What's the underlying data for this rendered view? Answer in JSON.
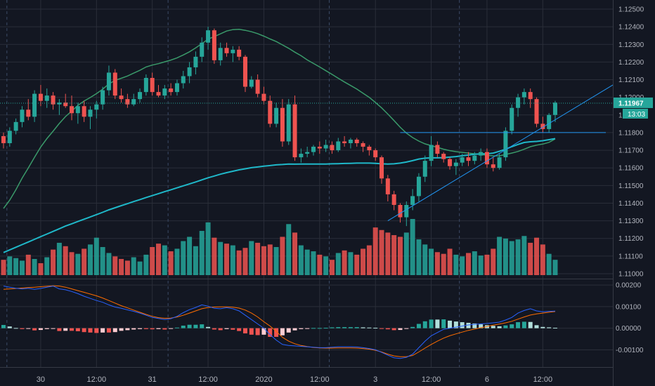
{
  "chart_data": [
    {
      "type": "candlestick",
      "pane": "price",
      "price_axis": {
        "ticks": [
          "1.12500",
          "1.12400",
          "1.12300",
          "1.12200",
          "1.12100",
          "1.12000",
          "1.11900",
          "1.11800",
          "1.11700",
          "1.11600",
          "1.11500",
          "1.11400",
          "1.11300",
          "1.11200",
          "1.11100",
          "1.11000"
        ],
        "range": [
          1.11,
          1.125
        ]
      },
      "time_axis": {
        "labels": [
          "30",
          "12:00",
          "31",
          "12:00",
          "2020",
          "12:00",
          "3",
          "12:00",
          "6",
          "12:00"
        ],
        "label_bar_index": [
          6,
          15,
          24,
          33,
          42,
          51,
          60,
          69,
          78,
          87
        ]
      },
      "current_price": "1.11967",
      "countdown": "13:03",
      "candles": [
        [
          1.1178,
          1.118,
          1.1171,
          1.1174
        ],
        [
          1.1174,
          1.1183,
          1.1172,
          1.1181
        ],
        [
          1.1181,
          1.1188,
          1.1179,
          1.1186
        ],
        [
          1.1186,
          1.1195,
          1.1183,
          1.1193
        ],
        [
          1.1193,
          1.1199,
          1.1187,
          1.1189
        ],
        [
          1.1189,
          1.1204,
          1.1186,
          1.1202
        ],
        [
          1.1202,
          1.1207,
          1.1195,
          1.1198
        ],
        [
          1.1198,
          1.1205,
          1.1194,
          1.1201
        ],
        [
          1.1201,
          1.1203,
          1.1193,
          1.1196
        ],
        [
          1.1196,
          1.1199,
          1.119,
          1.1197
        ],
        [
          1.1197,
          1.1202,
          1.1194,
          1.1195
        ],
        [
          1.1195,
          1.1201,
          1.1187,
          1.1191
        ],
        [
          1.1191,
          1.1197,
          1.1185,
          1.1195
        ],
        [
          1.1195,
          1.1198,
          1.1186,
          1.1189
        ],
        [
          1.1189,
          1.1195,
          1.1182,
          1.1193
        ],
        [
          1.1193,
          1.1198,
          1.1188,
          1.1196
        ],
        [
          1.1196,
          1.1206,
          1.1193,
          1.1204
        ],
        [
          1.1204,
          1.1218,
          1.1201,
          1.1214
        ],
        [
          1.1214,
          1.1216,
          1.1199,
          1.1201
        ],
        [
          1.1201,
          1.1205,
          1.1197,
          1.1199
        ],
        [
          1.1199,
          1.1202,
          1.1194,
          1.1196
        ],
        [
          1.1196,
          1.1202,
          1.1195,
          1.1199
        ],
        [
          1.1199,
          1.1205,
          1.1197,
          1.1203
        ],
        [
          1.1203,
          1.1213,
          1.1201,
          1.1211
        ],
        [
          1.1211,
          1.1214,
          1.1201,
          1.1203
        ],
        [
          1.1203,
          1.1207,
          1.12,
          1.1201
        ],
        [
          1.1201,
          1.1207,
          1.1199,
          1.1205
        ],
        [
          1.1205,
          1.1208,
          1.1201,
          1.1203
        ],
        [
          1.1203,
          1.121,
          1.1201,
          1.1208
        ],
        [
          1.1208,
          1.1215,
          1.1205,
          1.1212
        ],
        [
          1.1212,
          1.122,
          1.1208,
          1.1217
        ],
        [
          1.1217,
          1.1226,
          1.1213,
          1.1223
        ],
        [
          1.1223,
          1.1234,
          1.122,
          1.1231
        ],
        [
          1.1231,
          1.124,
          1.1227,
          1.1238
        ],
        [
          1.1238,
          1.1239,
          1.1219,
          1.1221
        ],
        [
          1.1221,
          1.1231,
          1.1218,
          1.1228
        ],
        [
          1.1228,
          1.1231,
          1.1223,
          1.1225
        ],
        [
          1.1225,
          1.1229,
          1.122,
          1.1227
        ],
        [
          1.1227,
          1.1229,
          1.1221,
          1.1223
        ],
        [
          1.1223,
          1.1224,
          1.1203,
          1.1206
        ],
        [
          1.1206,
          1.1212,
          1.1205,
          1.121
        ],
        [
          1.121,
          1.1213,
          1.12,
          1.1202
        ],
        [
          1.1202,
          1.1206,
          1.1196,
          1.1198
        ],
        [
          1.1198,
          1.1201,
          1.1183,
          1.1185
        ],
        [
          1.1185,
          1.1197,
          1.1183,
          1.1194
        ],
        [
          1.1194,
          1.1199,
          1.1172,
          1.1175
        ],
        [
          1.1175,
          1.1199,
          1.1173,
          1.1196
        ],
        [
          1.1196,
          1.1201,
          1.1164,
          1.1166
        ],
        [
          1.1166,
          1.1171,
          1.1163,
          1.1168
        ],
        [
          1.1168,
          1.1172,
          1.1166,
          1.1169
        ],
        [
          1.1169,
          1.1173,
          1.1167,
          1.1172
        ],
        [
          1.1172,
          1.1175,
          1.1168,
          1.1171
        ],
        [
          1.1171,
          1.1176,
          1.1169,
          1.1173
        ],
        [
          1.1173,
          1.1175,
          1.1168,
          1.117
        ],
        [
          1.117,
          1.1177,
          1.1169,
          1.1175
        ],
        [
          1.1175,
          1.1178,
          1.1172,
          1.1174
        ],
        [
          1.1174,
          1.1177,
          1.1171,
          1.1176
        ],
        [
          1.1176,
          1.1177,
          1.1172,
          1.1174
        ],
        [
          1.1174,
          1.1175,
          1.1169,
          1.1172
        ],
        [
          1.1172,
          1.1173,
          1.1167,
          1.117
        ],
        [
          1.117,
          1.1171,
          1.1164,
          1.1166
        ],
        [
          1.1166,
          1.1167,
          1.1151,
          1.1154
        ],
        [
          1.1154,
          1.1156,
          1.1141,
          1.1145
        ],
        [
          1.1145,
          1.1147,
          1.1136,
          1.1139
        ],
        [
          1.1139,
          1.114,
          1.1129,
          1.1132
        ],
        [
          1.1132,
          1.1141,
          1.1127,
          1.1139
        ],
        [
          1.1139,
          1.1148,
          1.1136,
          1.1144
        ],
        [
          1.1144,
          1.1157,
          1.1141,
          1.1155
        ],
        [
          1.1155,
          1.1167,
          1.1152,
          1.1164
        ],
        [
          1.1164,
          1.1178,
          1.1161,
          1.1173
        ],
        [
          1.1173,
          1.1175,
          1.1166,
          1.1168
        ],
        [
          1.1168,
          1.1169,
          1.1163,
          1.1165
        ],
        [
          1.1165,
          1.1166,
          1.1159,
          1.1161
        ],
        [
          1.1161,
          1.1165,
          1.1156,
          1.1163
        ],
        [
          1.1163,
          1.1168,
          1.1161,
          1.1166
        ],
        [
          1.1166,
          1.1169,
          1.1161,
          1.1164
        ],
        [
          1.1164,
          1.1169,
          1.1162,
          1.1167
        ],
        [
          1.1167,
          1.1171,
          1.1164,
          1.1169
        ],
        [
          1.1169,
          1.1171,
          1.116,
          1.1162
        ],
        [
          1.1162,
          1.1166,
          1.1158,
          1.116
        ],
        [
          1.116,
          1.1168,
          1.1159,
          1.1166
        ],
        [
          1.1166,
          1.1183,
          1.1164,
          1.1181
        ],
        [
          1.1181,
          1.1196,
          1.1179,
          1.1194
        ],
        [
          1.1194,
          1.1202,
          1.1189,
          1.12
        ],
        [
          1.12,
          1.1205,
          1.1196,
          1.1203
        ],
        [
          1.1203,
          1.1205,
          1.1194,
          1.1199
        ],
        [
          1.1199,
          1.12,
          1.1183,
          1.1185
        ],
        [
          1.1185,
          1.1189,
          1.118,
          1.1182
        ],
        [
          1.1182,
          1.1191,
          1.118,
          1.119
        ],
        [
          1.119,
          1.1198,
          1.1186,
          1.1197
        ]
      ],
      "volume": [
        18,
        22,
        20,
        17,
        24,
        19,
        14,
        21,
        30,
        38,
        34,
        27,
        25,
        31,
        36,
        44,
        33,
        26,
        22,
        19,
        17,
        21,
        16,
        24,
        33,
        37,
        35,
        28,
        31,
        40,
        45,
        34,
        52,
        62,
        44,
        39,
        37,
        35,
        29,
        32,
        40,
        38,
        34,
        36,
        33,
        45,
        60,
        50,
        35,
        30,
        28,
        24,
        22,
        18,
        26,
        29,
        27,
        24,
        31,
        35,
        56,
        53,
        50,
        47,
        45,
        50,
        66,
        42,
        36,
        31,
        27,
        25,
        31,
        24,
        22,
        26,
        28,
        23,
        24,
        31,
        45,
        43,
        40,
        42,
        46,
        38,
        44,
        36,
        25,
        18
      ],
      "moving_averages": [
        {
          "color": "#3a9a6a",
          "values": [
            1.1137,
            1.11417,
            1.11476,
            1.11542,
            1.116,
            1.1166,
            1.11718,
            1.11766,
            1.11808,
            1.11852,
            1.11891,
            1.11922,
            1.11954,
            1.11979,
            1.11999,
            1.12021,
            1.12046,
            1.12076,
            1.12096,
            1.12108,
            1.12121,
            1.12137,
            1.12153,
            1.12172,
            1.12183,
            1.12191,
            1.12201,
            1.12211,
            1.12224,
            1.1224,
            1.12258,
            1.1228,
            1.12304,
            1.1233,
            1.12344,
            1.1236,
            1.12376,
            1.12384,
            1.12386,
            1.1238,
            1.12372,
            1.12361,
            1.12347,
            1.12331,
            1.12316,
            1.12297,
            1.12278,
            1.12256,
            1.12236,
            1.12212,
            1.12192,
            1.12172,
            1.12151,
            1.1213,
            1.12108,
            1.12087,
            1.12067,
            1.12047,
            1.12023,
            1.12,
            1.11971,
            1.1194,
            1.11905,
            1.11868,
            1.1183,
            1.11797,
            1.11772,
            1.11752,
            1.11736,
            1.11726,
            1.11716,
            1.11706,
            1.11698,
            1.11692,
            1.11688,
            1.11684,
            1.1168,
            1.11676,
            1.11672,
            1.11668,
            1.11668,
            1.11676,
            1.11684,
            1.11693,
            1.11706,
            1.1172,
            1.11729,
            1.11735,
            1.11745,
            1.11764
          ]
        },
        {
          "color": "#1fb8c9",
          "values": [
            1.1112,
            1.11135,
            1.1115,
            1.11165,
            1.1118,
            1.11195,
            1.1121,
            1.11225,
            1.1124,
            1.11255,
            1.1127,
            1.11283,
            1.11296,
            1.11309,
            1.11322,
            1.11335,
            1.11348,
            1.11362,
            1.11374,
            1.11386,
            1.11397,
            1.11409,
            1.1142,
            1.11432,
            1.11443,
            1.11454,
            1.11465,
            1.11476,
            1.11487,
            1.11498,
            1.11509,
            1.1152,
            1.11532,
            1.11544,
            1.11554,
            1.11564,
            1.11573,
            1.11581,
            1.11589,
            1.11595,
            1.11601,
            1.11605,
            1.1161,
            1.11613,
            1.11617,
            1.11619,
            1.11622,
            1.11621,
            1.11622,
            1.11622,
            1.11622,
            1.11622,
            1.11622,
            1.11623,
            1.11624,
            1.11625,
            1.11626,
            1.11627,
            1.11627,
            1.11627,
            1.11626,
            1.11623,
            1.11622,
            1.11623,
            1.11627,
            1.11633,
            1.11641,
            1.1165,
            1.11655,
            1.11657,
            1.11657,
            1.11658,
            1.11661,
            1.11664,
            1.11669,
            1.11673,
            1.11677,
            1.11679,
            1.1168,
            1.11684,
            1.11694,
            1.11706,
            1.1172,
            1.11733,
            1.11744,
            1.11748,
            1.1175,
            1.11754,
            1.1176,
            1.11766
          ]
        }
      ],
      "drawings": [
        {
          "type": "horizontal_ray",
          "price": 1.118,
          "from_bar": 64
        },
        {
          "type": "trend_line",
          "from": [
            62,
            1.113
          ],
          "to": [
            95,
            1.12
          ]
        }
      ]
    },
    {
      "type": "macd",
      "pane": "indicator",
      "axis": {
        "ticks": [
          "0.00200",
          "0.00100",
          "0.00000",
          "-0.00100"
        ],
        "range": [
          -0.0017,
          0.0021
        ]
      },
      "macd": [
        0.00195,
        0.0019,
        0.00185,
        0.00182,
        0.00185,
        0.0018,
        0.00184,
        0.0019,
        0.00195,
        0.00182,
        0.00178,
        0.0017,
        0.0016,
        0.00148,
        0.00138,
        0.00128,
        0.0012,
        0.00108,
        0.00098,
        0.00092,
        0.00085,
        0.00078,
        0.0007,
        0.0006,
        0.0005,
        0.00045,
        0.0004,
        0.00044,
        0.00055,
        0.00072,
        0.00086,
        0.00096,
        0.00108,
        0.00102,
        0.00092,
        0.0009,
        0.00095,
        0.0009,
        0.0008,
        0.0006,
        0.0004,
        0.0002,
        0.0,
        -0.0003,
        -0.00055,
        -0.00075,
        -0.0008,
        -0.00082,
        -0.00084,
        -0.00086,
        -0.00088,
        -0.0009,
        -0.0009,
        -0.00088,
        -0.00086,
        -0.00086,
        -0.00086,
        -0.00087,
        -0.0009,
        -0.00094,
        -0.001,
        -0.00112,
        -0.00125,
        -0.00137,
        -0.0014,
        -0.00135,
        -0.0012,
        -0.0009,
        -0.0006,
        -0.00035,
        -0.0002,
        -5e-05,
        0.0,
        5e-05,
        0.0001,
        0.00015,
        0.00018,
        0.0002,
        0.00022,
        0.00025,
        0.00028,
        0.00038,
        0.0005,
        0.0007,
        0.00082,
        0.0009,
        0.0008,
        0.00076,
        0.00078,
        0.00079
      ],
      "signal": [
        0.0018,
        0.00182,
        0.00184,
        0.00186,
        0.00188,
        0.0019,
        0.00192,
        0.00194,
        0.00196,
        0.00195,
        0.0019,
        0.00182,
        0.00174,
        0.00166,
        0.00158,
        0.0015,
        0.0014,
        0.00128,
        0.00116,
        0.00104,
        0.00094,
        0.00084,
        0.00074,
        0.00064,
        0.00055,
        0.00049,
        0.00046,
        0.00047,
        0.00052,
        0.0006,
        0.0007,
        0.0008,
        0.0009,
        0.00096,
        0.00098,
        0.00099,
        0.00099,
        0.00097,
        0.00093,
        0.00084,
        0.0007,
        0.00052,
        0.0003,
        0.0001,
        -0.00015,
        -0.00042,
        -0.0006,
        -0.00072,
        -0.0008,
        -0.00085,
        -0.00089,
        -0.00091,
        -0.00092,
        -0.00092,
        -0.00091,
        -0.00091,
        -0.00091,
        -0.00092,
        -0.00094,
        -0.00097,
        -0.00102,
        -0.0011,
        -0.0012,
        -0.00128,
        -0.00132,
        -0.00132,
        -0.00126,
        -0.0011,
        -0.00092,
        -0.00075,
        -0.0006,
        -0.00046,
        -0.00035,
        -0.00026,
        -0.00018,
        -0.0001,
        -4e-05,
        2e-05,
        8e-05,
        0.00014,
        0.00019,
        0.00025,
        0.00032,
        0.00042,
        0.00052,
        0.00061,
        0.00066,
        0.0007,
        0.00074,
        0.00077
      ],
      "histogram_colors": {
        "pos_strong": "#26a69a",
        "pos_weak": "#b2dfdb",
        "neg_strong": "#ef5350",
        "neg_weak": "#ffcdd2"
      }
    }
  ],
  "colors": {
    "background": "#131722",
    "grid": "#2a2e39",
    "up": "#26a69a",
    "down": "#ef5350",
    "macd_line": "#2962ff",
    "signal_line": "#ff6d00",
    "drawing": "#2196f3",
    "price_label_bg": "#26a69a",
    "text": "#b2b5be"
  }
}
